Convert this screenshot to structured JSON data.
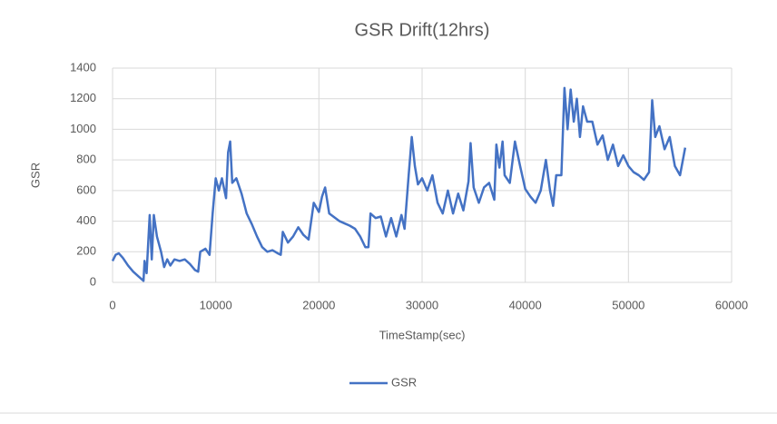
{
  "chart_data": {
    "type": "line",
    "title": "GSR Drift(12hrs)",
    "x_label": "TimeStamp(sec)",
    "y_label": "GSR",
    "x": [
      0,
      300,
      600,
      1000,
      1500,
      2000,
      2500,
      3000,
      3100,
      3300,
      3600,
      3800,
      4000,
      4300,
      4700,
      5000,
      5300,
      5600,
      6000,
      6500,
      7000,
      7500,
      8000,
      8300,
      8500,
      9000,
      9400,
      9700,
      10000,
      10300,
      10600,
      11000,
      11200,
      11400,
      11600,
      12000,
      12500,
      13000,
      13500,
      14000,
      14500,
      15000,
      15500,
      16000,
      16300,
      16500,
      17000,
      17500,
      18000,
      18500,
      19000,
      19500,
      20000,
      20300,
      20600,
      21000,
      22000,
      23000,
      23500,
      24000,
      24500,
      24800,
      25000,
      25500,
      26000,
      26500,
      27000,
      27500,
      28000,
      28300,
      28700,
      29000,
      29300,
      29600,
      30000,
      30500,
      31000,
      31500,
      32000,
      32500,
      33000,
      33500,
      34000,
      34500,
      34700,
      35000,
      35500,
      36000,
      36500,
      37000,
      37200,
      37500,
      37800,
      38000,
      38500,
      39000,
      39500,
      40000,
      40500,
      41000,
      41500,
      42000,
      42400,
      42700,
      43000,
      43500,
      43800,
      44100,
      44400,
      44700,
      45000,
      45300,
      45600,
      46000,
      46500,
      47000,
      47500,
      48000,
      48500,
      49000,
      49500,
      50000,
      50500,
      51000,
      51500,
      52000,
      52300,
      52600,
      53000,
      53500,
      54000,
      54500,
      55000,
      55500
    ],
    "series": [
      {
        "name": "GSR",
        "color": "#4472c4",
        "values": [
          140,
          180,
          190,
          160,
          110,
          70,
          40,
          10,
          140,
          60,
          440,
          150,
          440,
          300,
          200,
          100,
          150,
          110,
          150,
          140,
          150,
          120,
          80,
          70,
          200,
          220,
          180,
          450,
          680,
          600,
          680,
          550,
          850,
          920,
          650,
          680,
          580,
          450,
          380,
          300,
          230,
          200,
          210,
          190,
          180,
          330,
          260,
          300,
          360,
          310,
          280,
          520,
          460,
          560,
          620,
          450,
          400,
          370,
          350,
          300,
          230,
          230,
          450,
          420,
          430,
          300,
          420,
          300,
          440,
          350,
          700,
          950,
          760,
          640,
          680,
          600,
          700,
          520,
          450,
          600,
          450,
          580,
          470,
          660,
          910,
          620,
          520,
          620,
          650,
          540,
          900,
          750,
          920,
          700,
          650,
          920,
          760,
          610,
          560,
          520,
          600,
          800,
          600,
          500,
          700,
          700,
          1270,
          1000,
          1260,
          1050,
          1200,
          950,
          1150,
          1050,
          1050,
          900,
          960,
          800,
          900,
          760,
          830,
          760,
          720,
          700,
          670,
          720,
          1190,
          950,
          1020,
          870,
          950,
          760,
          700,
          880
        ]
      }
    ],
    "xlim": [
      0,
      60000
    ],
    "xticks": [
      0,
      10000,
      20000,
      30000,
      40000,
      50000,
      60000
    ],
    "ylim": [
      0,
      1400
    ],
    "yticks": [
      0,
      200,
      400,
      600,
      800,
      1000,
      1200,
      1400
    ],
    "grid": true,
    "legend": "bottom"
  }
}
